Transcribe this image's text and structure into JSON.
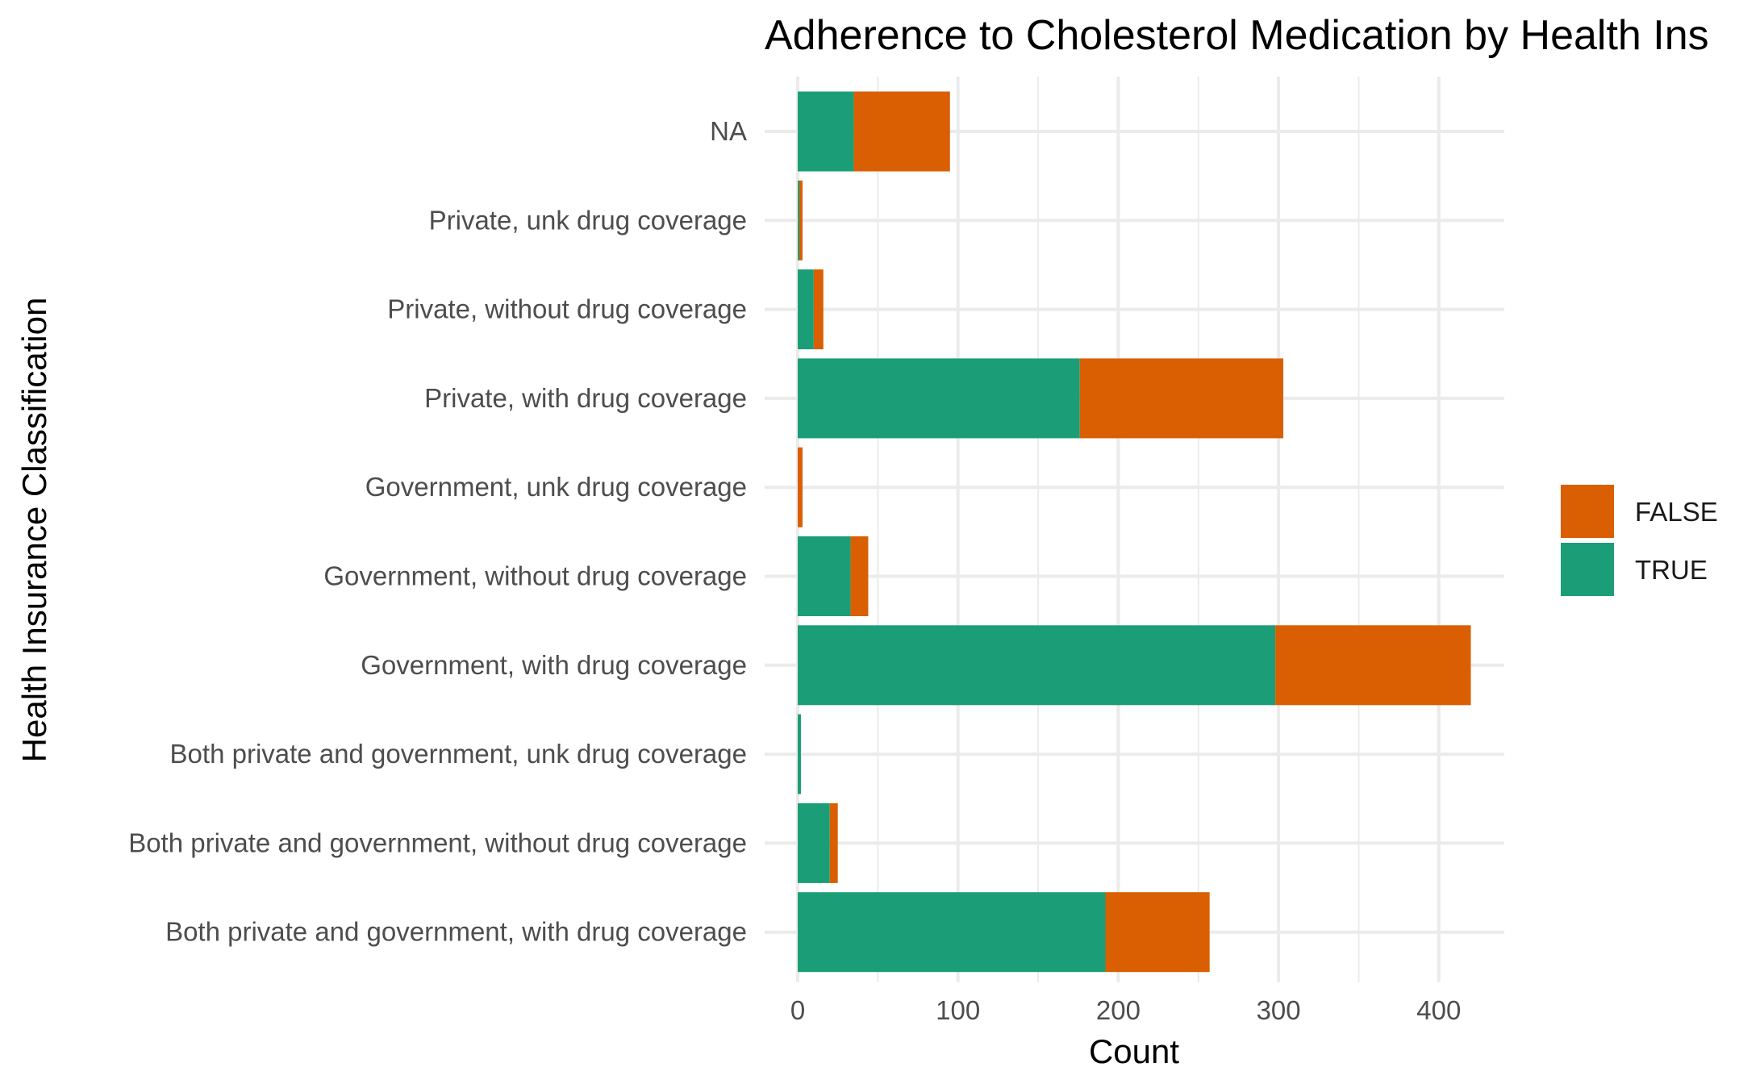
{
  "colors": {
    "TRUE": "#1b9e77",
    "FALSE": "#d95f02",
    "grid": "#ebebeb"
  },
  "chart_data": {
    "type": "bar",
    "orientation": "horizontal",
    "stacked": true,
    "title": "Adherence to Cholesterol Medication by Health Ins",
    "xlabel": "Count",
    "ylabel": "Health Insurance Classification",
    "xlim": [
      0,
      440
    ],
    "xticks": [
      0,
      100,
      200,
      300,
      400
    ],
    "grid": true,
    "legend_position": "right",
    "legend": [
      "FALSE",
      "TRUE"
    ],
    "categories": [
      "NA",
      "Private, unk drug coverage",
      "Private, without drug coverage",
      "Private, with drug coverage",
      "Government, unk drug coverage",
      "Government, without drug coverage",
      "Government, with drug coverage",
      "Both private and government, unk drug coverage",
      "Both private and government, without drug coverage",
      "Both private and government, with drug coverage"
    ],
    "series": [
      {
        "name": "TRUE",
        "values": [
          35,
          1,
          10,
          176,
          0,
          33,
          298,
          2,
          20,
          192
        ]
      },
      {
        "name": "FALSE",
        "values": [
          60,
          2,
          6,
          127,
          3,
          11,
          122,
          0,
          5,
          65
        ]
      }
    ]
  }
}
